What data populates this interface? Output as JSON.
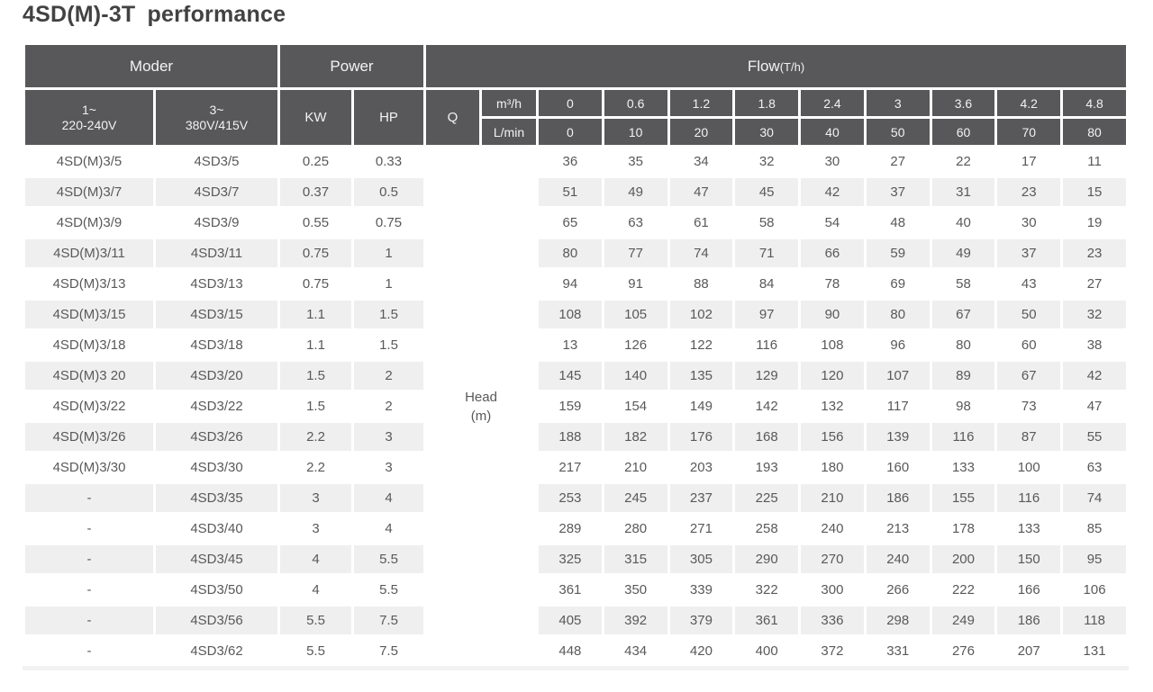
{
  "title": "4SD(M)-3T performance",
  "colors": {
    "header_bg": "#58585a",
    "header_text": "#f2f2f2",
    "stripe": "#efefef",
    "data_text": "#59595b",
    "title_text": "#424242"
  },
  "table": {
    "header": {
      "moder": "Moder",
      "power": "Power",
      "flow": "Flow",
      "flow_unit": "(T/h)",
      "col1_line1": "1~",
      "col1_line2": "220-240V",
      "col2_line1": "3~",
      "col2_line2": "380V/415V",
      "kw": "KW",
      "hp": "HP",
      "q": "Q",
      "m3h": "m³/h",
      "lmin": "L/min",
      "m3h_values": [
        "0",
        "0.6",
        "1.2",
        "1.8",
        "2.4",
        "3",
        "3.6",
        "4.2",
        "4.8"
      ],
      "lmin_values": [
        "0",
        "10",
        "20",
        "30",
        "40",
        "50",
        "60",
        "70",
        "80"
      ]
    },
    "head_label_line1": "Head",
    "head_label_line2": "(m)",
    "rows": [
      {
        "model1": "4SD(M)3/5",
        "model3": "4SD3/5",
        "kw": "0.25",
        "hp": "0.33",
        "values": [
          "36",
          "35",
          "34",
          "32",
          "30",
          "27",
          "22",
          "17",
          "11"
        ]
      },
      {
        "model1": "4SD(M)3/7",
        "model3": "4SD3/7",
        "kw": "0.37",
        "hp": "0.5",
        "values": [
          "51",
          "49",
          "47",
          "45",
          "42",
          "37",
          "31",
          "23",
          "15"
        ]
      },
      {
        "model1": "4SD(M)3/9",
        "model3": "4SD3/9",
        "kw": "0.55",
        "hp": "0.75",
        "values": [
          "65",
          "63",
          "61",
          "58",
          "54",
          "48",
          "40",
          "30",
          "19"
        ]
      },
      {
        "model1": "4SD(M)3/11",
        "model3": "4SD3/11",
        "kw": "0.75",
        "hp": "1",
        "values": [
          "80",
          "77",
          "74",
          "71",
          "66",
          "59",
          "49",
          "37",
          "23"
        ]
      },
      {
        "model1": "4SD(M)3/13",
        "model3": "4SD3/13",
        "kw": "0.75",
        "hp": "1",
        "values": [
          "94",
          "91",
          "88",
          "84",
          "78",
          "69",
          "58",
          "43",
          "27"
        ]
      },
      {
        "model1": "4SD(M)3/15",
        "model3": "4SD3/15",
        "kw": "1.1",
        "hp": "1.5",
        "values": [
          "108",
          "105",
          "102",
          "97",
          "90",
          "80",
          "67",
          "50",
          "32"
        ]
      },
      {
        "model1": "4SD(M)3/18",
        "model3": "4SD3/18",
        "kw": "1.1",
        "hp": "1.5",
        "values": [
          "13",
          "126",
          "122",
          "116",
          "108",
          "96",
          "80",
          "60",
          "38"
        ]
      },
      {
        "model1": "4SD(M)3 20",
        "model3": "4SD3/20",
        "kw": "1.5",
        "hp": "2",
        "values": [
          "145",
          "140",
          "135",
          "129",
          "120",
          "107",
          "89",
          "67",
          "42"
        ]
      },
      {
        "model1": "4SD(M)3/22",
        "model3": "4SD3/22",
        "kw": "1.5",
        "hp": "2",
        "values": [
          "159",
          "154",
          "149",
          "142",
          "132",
          "117",
          "98",
          "73",
          "47"
        ]
      },
      {
        "model1": "4SD(M)3/26",
        "model3": "4SD3/26",
        "kw": "2.2",
        "hp": "3",
        "values": [
          "188",
          "182",
          "176",
          "168",
          "156",
          "139",
          "116",
          "87",
          "55"
        ]
      },
      {
        "model1": "4SD(M)3/30",
        "model3": "4SD3/30",
        "kw": "2.2",
        "hp": "3",
        "values": [
          "217",
          "210",
          "203",
          "193",
          "180",
          "160",
          "133",
          "100",
          "63"
        ]
      },
      {
        "model1": "-",
        "model3": "4SD3/35",
        "kw": "3",
        "hp": "4",
        "values": [
          "253",
          "245",
          "237",
          "225",
          "210",
          "186",
          "155",
          "116",
          "74"
        ]
      },
      {
        "model1": "-",
        "model3": "4SD3/40",
        "kw": "3",
        "hp": "4",
        "values": [
          "289",
          "280",
          "271",
          "258",
          "240",
          "213",
          "178",
          "133",
          "85"
        ]
      },
      {
        "model1": "-",
        "model3": "4SD3/45",
        "kw": "4",
        "hp": "5.5",
        "values": [
          "325",
          "315",
          "305",
          "290",
          "270",
          "240",
          "200",
          "150",
          "95"
        ]
      },
      {
        "model1": "-",
        "model3": "4SD3/50",
        "kw": "4",
        "hp": "5.5",
        "values": [
          "361",
          "350",
          "339",
          "322",
          "300",
          "266",
          "222",
          "166",
          "106"
        ]
      },
      {
        "model1": "-",
        "model3": "4SD3/56",
        "kw": "5.5",
        "hp": "7.5",
        "values": [
          "405",
          "392",
          "379",
          "361",
          "336",
          "298",
          "249",
          "186",
          "118"
        ]
      },
      {
        "model1": "-",
        "model3": "4SD3/62",
        "kw": "5.5",
        "hp": "7.5",
        "values": [
          "448",
          "434",
          "420",
          "400",
          "372",
          "331",
          "276",
          "207",
          "131"
        ]
      }
    ]
  }
}
